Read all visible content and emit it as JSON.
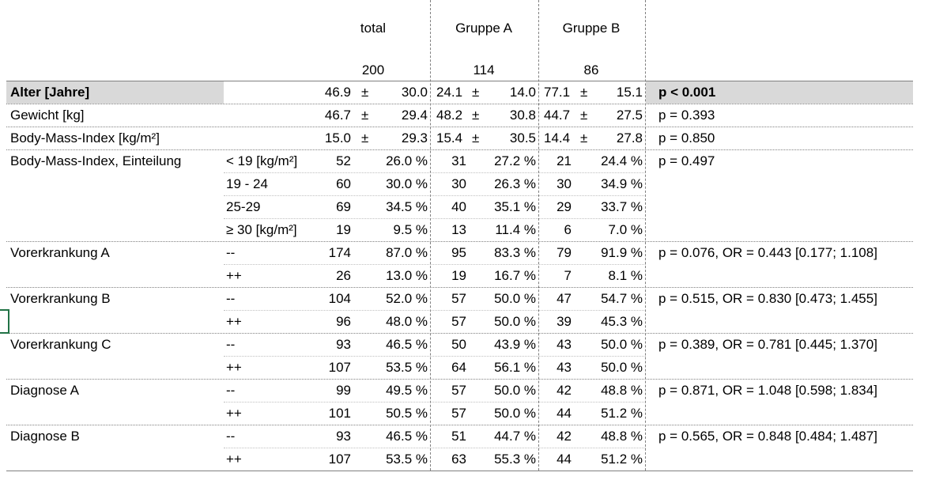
{
  "header": {
    "groups": [
      "total",
      "Gruppe A",
      "Gruppe B"
    ],
    "counts": [
      "200",
      "114",
      "86"
    ]
  },
  "continuous": [
    {
      "label": "Alter [Jahre]",
      "bold": true,
      "highlight": true,
      "total": [
        "46.9",
        "±",
        "30.0"
      ],
      "a": [
        "24.1",
        "±",
        "14.0"
      ],
      "b": [
        "77.1",
        "±",
        "15.1"
      ],
      "p": "p < 0.001"
    },
    {
      "label": "Gewicht [kg]",
      "bold": false,
      "highlight": false,
      "total": [
        "46.7",
        "±",
        "29.4"
      ],
      "a": [
        "48.2",
        "±",
        "30.8"
      ],
      "b": [
        "44.7",
        "±",
        "27.5"
      ],
      "p": "p = 0.393"
    },
    {
      "label": "Body-Mass-Index [kg/m²]",
      "bold": false,
      "highlight": false,
      "total": [
        "15.0",
        "±",
        "29.3"
      ],
      "a": [
        "15.4",
        "±",
        "30.5"
      ],
      "b": [
        "14.4",
        "±",
        "27.8"
      ],
      "p": "p = 0.850"
    }
  ],
  "categorical": [
    {
      "label": "Body-Mass-Index, Einteilung",
      "p": "p = 0.497",
      "rows": [
        {
          "cat": "< 19 [kg/m²]",
          "n": "52",
          "pct": "26.0 %",
          "an": "31",
          "apct": "27.2 %",
          "bn": "21",
          "bpct": "24.4 %"
        },
        {
          "cat": "19 - 24",
          "n": "60",
          "pct": "30.0 %",
          "an": "30",
          "apct": "26.3 %",
          "bn": "30",
          "bpct": "34.9 %"
        },
        {
          "cat": "25-29",
          "n": "69",
          "pct": "34.5 %",
          "an": "40",
          "apct": "35.1 %",
          "bn": "29",
          "bpct": "33.7 %"
        },
        {
          "cat": "≥ 30 [kg/m²]",
          "n": "19",
          "pct": "9.5 %",
          "an": "13",
          "apct": "11.4 %",
          "bn": "6",
          "bpct": "7.0 %"
        }
      ]
    },
    {
      "label": "Vorerkrankung A",
      "p": "p = 0.076, OR = 0.443 [0.177; 1.108]",
      "rows": [
        {
          "cat": "--",
          "n": "174",
          "pct": "87.0 %",
          "an": "95",
          "apct": "83.3 %",
          "bn": "79",
          "bpct": "91.9 %"
        },
        {
          "cat": "++",
          "n": "26",
          "pct": "13.0 %",
          "an": "19",
          "apct": "16.7 %",
          "bn": "7",
          "bpct": "8.1 %"
        }
      ]
    },
    {
      "label": "Vorerkrankung B",
      "p": "p = 0.515, OR = 0.830 [0.473; 1.455]",
      "rows": [
        {
          "cat": "--",
          "n": "104",
          "pct": "52.0 %",
          "an": "57",
          "apct": "50.0 %",
          "bn": "47",
          "bpct": "54.7 %"
        },
        {
          "cat": "++",
          "n": "96",
          "pct": "48.0 %",
          "an": "57",
          "apct": "50.0 %",
          "bn": "39",
          "bpct": "45.3 %"
        }
      ]
    },
    {
      "label": "Vorerkrankung C",
      "p": "p = 0.389, OR = 0.781 [0.445; 1.370]",
      "rows": [
        {
          "cat": "--",
          "n": "93",
          "pct": "46.5 %",
          "an": "50",
          "apct": "43.9 %",
          "bn": "43",
          "bpct": "50.0 %"
        },
        {
          "cat": "++",
          "n": "107",
          "pct": "53.5 %",
          "an": "64",
          "apct": "56.1 %",
          "bn": "43",
          "bpct": "50.0 %"
        }
      ]
    },
    {
      "label": "Diagnose A",
      "p": "p = 0.871, OR = 1.048 [0.598; 1.834]",
      "rows": [
        {
          "cat": "--",
          "n": "99",
          "pct": "49.5 %",
          "an": "57",
          "apct": "50.0 %",
          "bn": "42",
          "bpct": "48.8 %"
        },
        {
          "cat": "++",
          "n": "101",
          "pct": "50.5 %",
          "an": "57",
          "apct": "50.0 %",
          "bn": "44",
          "bpct": "51.2 %"
        }
      ]
    },
    {
      "label": "Diagnose B",
      "p": "p = 0.565, OR = 0.848 [0.484; 1.487]",
      "rows": [
        {
          "cat": "--",
          "n": "93",
          "pct": "46.5 %",
          "an": "51",
          "apct": "44.7 %",
          "bn": "42",
          "bpct": "48.8 %"
        },
        {
          "cat": "++",
          "n": "107",
          "pct": "53.5 %",
          "an": "63",
          "apct": "55.3 %",
          "bn": "44",
          "bpct": "51.2 %"
        }
      ]
    }
  ],
  "colors": {
    "highlight_bg": "#d9d9d9",
    "cell_selection": "#217346",
    "grid_line": "#808080"
  }
}
